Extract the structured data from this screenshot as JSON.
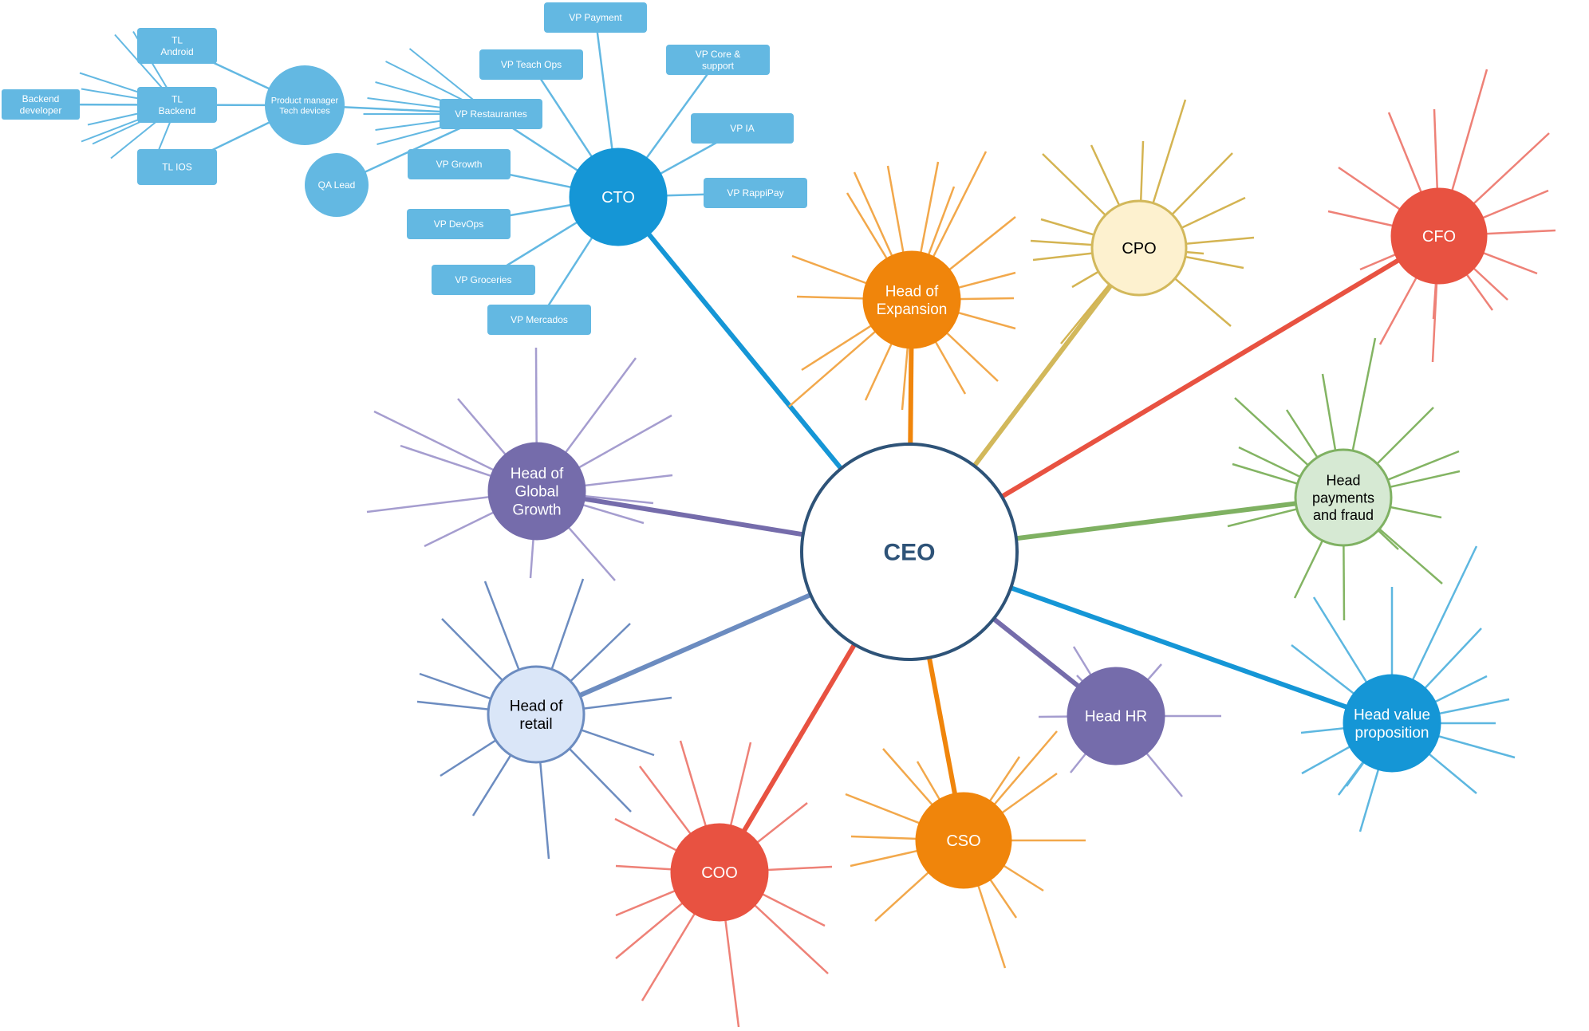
{
  "center": {
    "label": "CEO",
    "stroke": "#2E5378",
    "fill": "#FFFFFF",
    "text_color": "#2E5378"
  },
  "hubs": [
    {
      "id": "cto",
      "label": "CTO",
      "fill": "#1596D6",
      "stroke": "#1596D6",
      "line": "#1596D6",
      "spoke": "#63B8E2",
      "text_color": "#FFFFFF",
      "has_spokes": false
    },
    {
      "id": "head-expansion",
      "label": "Head of Expansion",
      "fill": "#F0850B",
      "stroke": "#F0850B",
      "line": "#F0850B",
      "spoke": "#F2A84B",
      "text_color": "#FFFFFF",
      "has_spokes": true
    },
    {
      "id": "cpo",
      "label": "CPO",
      "fill": "#FDF1CF",
      "stroke": "#D2B85B",
      "line": "#D2B85B",
      "spoke": "#D4B452",
      "text_color": "#000000",
      "has_spokes": true
    },
    {
      "id": "cfo",
      "label": "CFO",
      "fill": "#E85241",
      "stroke": "#E85241",
      "line": "#E85241",
      "spoke": "#EE8177",
      "text_color": "#FFFFFF",
      "has_spokes": true
    },
    {
      "id": "head-payments-fraud",
      "label": "Head payments and fraud",
      "fill": "#D6E9D3",
      "stroke": "#7FB162",
      "line": "#7FB162",
      "spoke": "#83B463",
      "text_color": "#000000",
      "has_spokes": true
    },
    {
      "id": "head-value-proposition",
      "label": "Head value proposition",
      "fill": "#1596D6",
      "stroke": "#1596D6",
      "line": "#1596D6",
      "spoke": "#5DB7E0",
      "text_color": "#FFFFFF",
      "has_spokes": true
    },
    {
      "id": "head-hr",
      "label": "Head HR",
      "fill": "#756CAB",
      "stroke": "#756CAB",
      "line": "#756CAB",
      "spoke": "#A59DCF",
      "text_color": "#FFFFFF",
      "has_spokes": true
    },
    {
      "id": "cso",
      "label": "CSO",
      "fill": "#F0850B",
      "stroke": "#F0850B",
      "line": "#F0850B",
      "spoke": "#F2A84B",
      "text_color": "#FFFFFF",
      "has_spokes": true
    },
    {
      "id": "coo",
      "label": "COO",
      "fill": "#E85241",
      "stroke": "#E85241",
      "line": "#E85241",
      "spoke": "#EE8177",
      "text_color": "#FFFFFF",
      "has_spokes": true
    },
    {
      "id": "head-retail",
      "label": "Head of retail",
      "fill": "#DAE6F8",
      "stroke": "#6C8CC0",
      "line": "#6C8CC0",
      "spoke": "#6C8CC0",
      "text_color": "#000000",
      "has_spokes": true
    },
    {
      "id": "head-global-growth",
      "label": "Head of Global Growth",
      "fill": "#756CAB",
      "stroke": "#756CAB",
      "line": "#756CAB",
      "spoke": "#A59DCF",
      "text_color": "#FFFFFF",
      "has_spokes": true
    }
  ],
  "cto_reports": [
    "VP Payment",
    "VP Teach Ops",
    "VP Core & support",
    "VP Restaurantes",
    "VP IA",
    "VP Growth",
    "VP RappiPay",
    "VP DevOps",
    "VP Groceries",
    "VP Mercados"
  ],
  "restaurantes_reports": {
    "product_manager": "Product manager Tech devices",
    "qa_lead": "QA Lead"
  },
  "pm_reports": [
    "TL Android",
    "TL Backend",
    "TL IOS"
  ],
  "backend_reports": [
    "Backend developer"
  ],
  "box_color": "#63B8E2",
  "box_text_color": "#FFFFFF"
}
